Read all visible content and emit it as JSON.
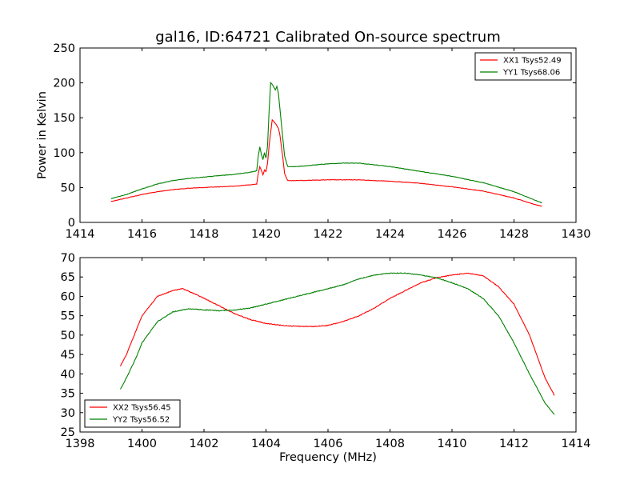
{
  "chart_data": [
    {
      "type": "line",
      "title": "gal16, ID:64721 Calibrated On-source spectrum",
      "xlabel": "",
      "ylabel": "Power in Kelvin",
      "xlim": [
        1414,
        1430
      ],
      "ylim": [
        0,
        250
      ],
      "xticks": [
        "1414",
        "1416",
        "1418",
        "1420",
        "1422",
        "1424",
        "1426",
        "1428",
        "1430"
      ],
      "yticks": [
        "0",
        "50",
        "100",
        "150",
        "200",
        "250"
      ],
      "grid": false,
      "legend_position": "top-right",
      "series": [
        {
          "name": "XX1 Tsys52.49",
          "color": "#ff0000",
          "points": [
            [
              1415.0,
              30
            ],
            [
              1415.5,
              35
            ],
            [
              1416.0,
              40
            ],
            [
              1416.5,
              44
            ],
            [
              1417.0,
              47
            ],
            [
              1417.5,
              49
            ],
            [
              1418.0,
              50
            ],
            [
              1418.5,
              51
            ],
            [
              1419.0,
              52
            ],
            [
              1419.5,
              54
            ],
            [
              1419.7,
              55
            ],
            [
              1419.75,
              70
            ],
            [
              1419.8,
              80
            ],
            [
              1419.85,
              75
            ],
            [
              1419.9,
              68
            ],
            [
              1419.95,
              75
            ],
            [
              1420.0,
              73
            ],
            [
              1420.05,
              85
            ],
            [
              1420.1,
              110
            ],
            [
              1420.2,
              147
            ],
            [
              1420.3,
              142
            ],
            [
              1420.4,
              135
            ],
            [
              1420.45,
              125
            ],
            [
              1420.55,
              90
            ],
            [
              1420.6,
              70
            ],
            [
              1420.7,
              60
            ],
            [
              1421.0,
              60
            ],
            [
              1422.0,
              61
            ],
            [
              1423.0,
              61
            ],
            [
              1424.0,
              59
            ],
            [
              1425.0,
              56
            ],
            [
              1426.0,
              51
            ],
            [
              1427.0,
              45
            ],
            [
              1428.0,
              35
            ],
            [
              1428.5,
              28
            ],
            [
              1428.9,
              23
            ]
          ]
        },
        {
          "name": "YY1 Tsys68.06",
          "color": "#008000",
          "points": [
            [
              1415.0,
              34
            ],
            [
              1415.5,
              40
            ],
            [
              1416.0,
              48
            ],
            [
              1416.5,
              55
            ],
            [
              1417.0,
              60
            ],
            [
              1417.5,
              63
            ],
            [
              1418.0,
              65
            ],
            [
              1418.5,
              67
            ],
            [
              1419.0,
              69
            ],
            [
              1419.5,
              72
            ],
            [
              1419.7,
              74
            ],
            [
              1419.75,
              95
            ],
            [
              1419.8,
              108
            ],
            [
              1419.85,
              98
            ],
            [
              1419.9,
              90
            ],
            [
              1419.95,
              100
            ],
            [
              1420.0,
              92
            ],
            [
              1420.05,
              110
            ],
            [
              1420.1,
              160
            ],
            [
              1420.15,
              200
            ],
            [
              1420.2,
              198
            ],
            [
              1420.3,
              190
            ],
            [
              1420.35,
              195
            ],
            [
              1420.4,
              185
            ],
            [
              1420.5,
              140
            ],
            [
              1420.6,
              95
            ],
            [
              1420.7,
              80
            ],
            [
              1421.0,
              80
            ],
            [
              1422.0,
              84
            ],
            [
              1422.5,
              85
            ],
            [
              1423.0,
              85
            ],
            [
              1424.0,
              80
            ],
            [
              1425.0,
              73
            ],
            [
              1426.0,
              66
            ],
            [
              1427.0,
              57
            ],
            [
              1428.0,
              44
            ],
            [
              1428.9,
              28
            ]
          ]
        }
      ]
    },
    {
      "type": "line",
      "title": "",
      "xlabel": "Frequency (MHz)",
      "ylabel": "",
      "xlim": [
        1398,
        1414
      ],
      "ylim": [
        25,
        70
      ],
      "xticks": [
        "1398",
        "1400",
        "1402",
        "1404",
        "1406",
        "1408",
        "1410",
        "1412",
        "1414"
      ],
      "yticks": [
        "25",
        "30",
        "35",
        "40",
        "45",
        "50",
        "55",
        "60",
        "65",
        "70"
      ],
      "grid": false,
      "legend_position": "bottom-left",
      "series": [
        {
          "name": "XX2 Tsys56.45",
          "color": "#ff0000",
          "points": [
            [
              1399.3,
              42
            ],
            [
              1399.5,
              45
            ],
            [
              1399.8,
              51
            ],
            [
              1400.0,
              55
            ],
            [
              1400.5,
              60
            ],
            [
              1401.0,
              61.5
            ],
            [
              1401.3,
              62
            ],
            [
              1401.6,
              61
            ],
            [
              1402.0,
              59.5
            ],
            [
              1402.5,
              57.5
            ],
            [
              1403.0,
              55.5
            ],
            [
              1403.5,
              54
            ],
            [
              1404.0,
              53
            ],
            [
              1404.5,
              52.5
            ],
            [
              1405.0,
              52.3
            ],
            [
              1405.5,
              52.2
            ],
            [
              1406.0,
              52.5
            ],
            [
              1406.5,
              53.5
            ],
            [
              1407.0,
              55
            ],
            [
              1407.5,
              57
            ],
            [
              1408.0,
              59.5
            ],
            [
              1408.5,
              61.5
            ],
            [
              1409.0,
              63.5
            ],
            [
              1409.5,
              64.8
            ],
            [
              1410.0,
              65.5
            ],
            [
              1410.5,
              66
            ],
            [
              1411.0,
              65.3
            ],
            [
              1411.5,
              62.5
            ],
            [
              1412.0,
              58
            ],
            [
              1412.5,
              50
            ],
            [
              1413.0,
              39
            ],
            [
              1413.3,
              34.5
            ]
          ]
        },
        {
          "name": "YY2 Tsys56.52",
          "color": "#008000",
          "points": [
            [
              1399.3,
              36
            ],
            [
              1399.5,
              39
            ],
            [
              1399.8,
              44
            ],
            [
              1400.0,
              48
            ],
            [
              1400.5,
              53.5
            ],
            [
              1401.0,
              56
            ],
            [
              1401.5,
              56.8
            ],
            [
              1402.0,
              56.5
            ],
            [
              1402.5,
              56.3
            ],
            [
              1403.0,
              56.5
            ],
            [
              1403.5,
              57
            ],
            [
              1404.0,
              58
            ],
            [
              1404.5,
              59
            ],
            [
              1405.0,
              60
            ],
            [
              1405.5,
              61
            ],
            [
              1406.0,
              62
            ],
            [
              1406.5,
              63
            ],
            [
              1407.0,
              64.5
            ],
            [
              1407.5,
              65.5
            ],
            [
              1408.0,
              66
            ],
            [
              1408.5,
              66
            ],
            [
              1409.0,
              65.5
            ],
            [
              1409.5,
              64.8
            ],
            [
              1410.0,
              63.5
            ],
            [
              1410.5,
              62
            ],
            [
              1411.0,
              59.5
            ],
            [
              1411.5,
              55
            ],
            [
              1412.0,
              48
            ],
            [
              1412.5,
              40
            ],
            [
              1413.0,
              32.5
            ],
            [
              1413.3,
              29.5
            ]
          ]
        }
      ]
    }
  ]
}
